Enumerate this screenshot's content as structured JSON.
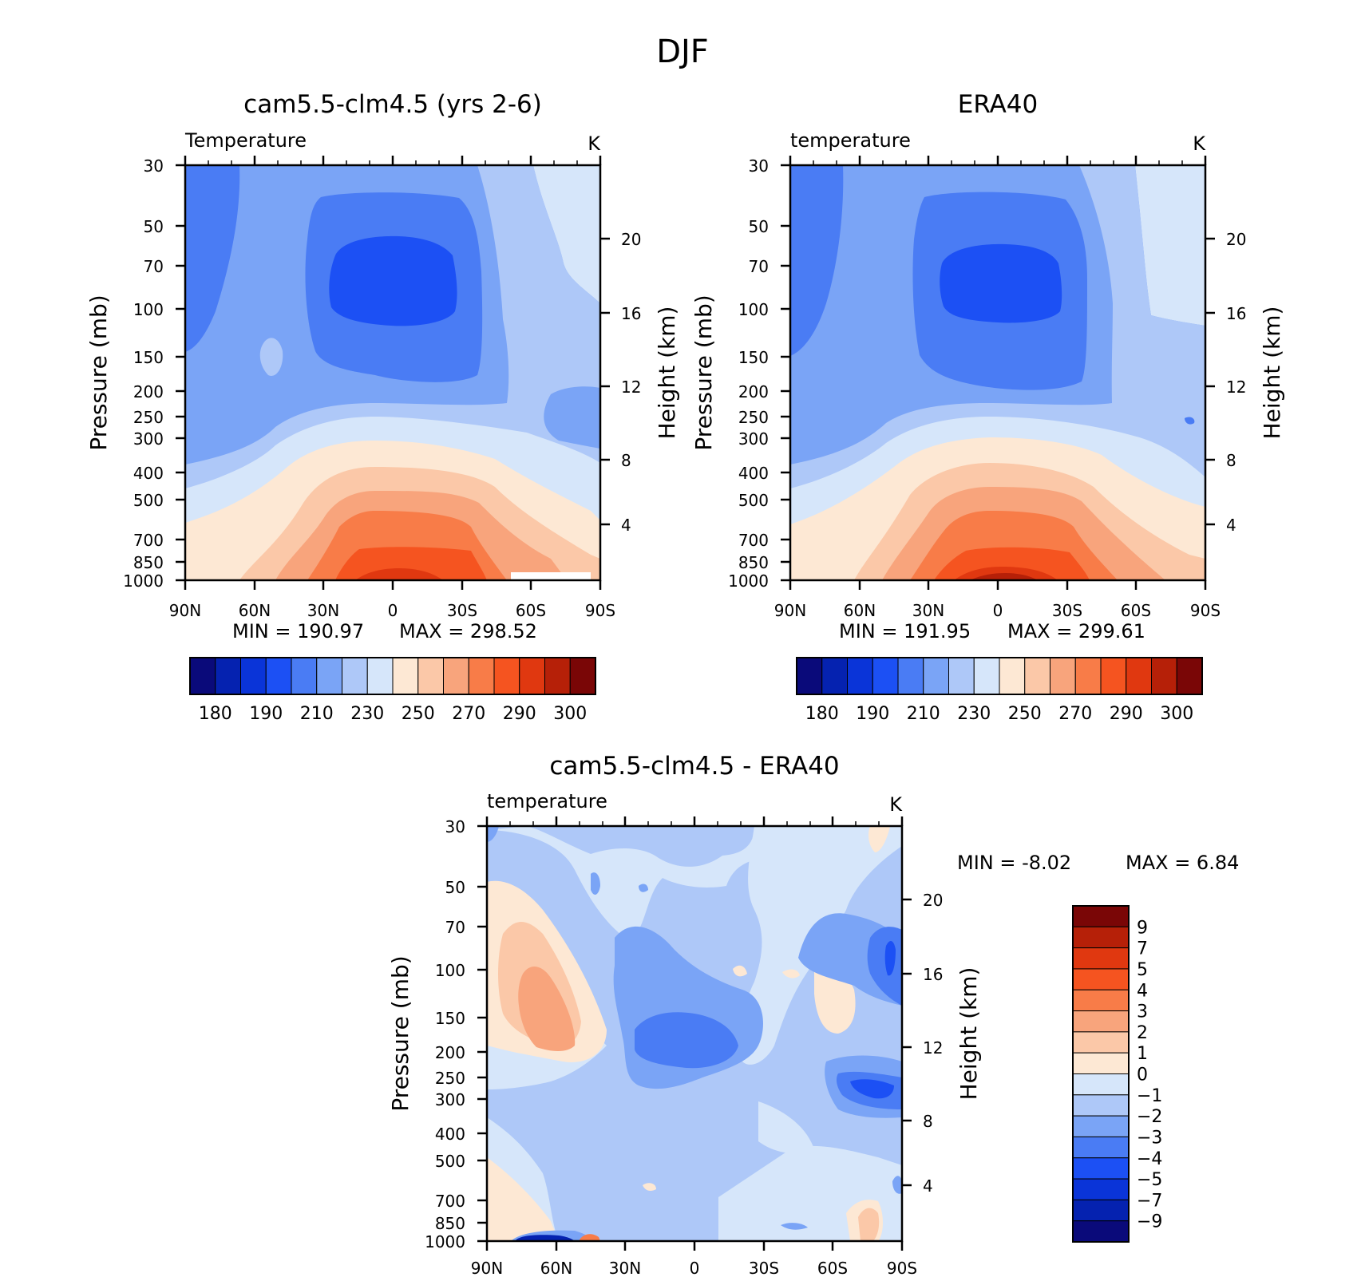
{
  "figure_title": "DJF",
  "chart_data": [
    {
      "type": "heatmap",
      "title": "cam5.5-clm4.5 (yrs 2-6)",
      "left_label": "Temperature",
      "units": "K",
      "ylabel": "Pressure (mb)",
      "y2label": "Height (km)",
      "xticklabels": [
        "90N",
        "60N",
        "30N",
        "0",
        "30S",
        "60S",
        "90S"
      ],
      "yticklabels": [
        "30",
        "50",
        "70",
        "100",
        "150",
        "200",
        "250",
        "300",
        "400",
        "500",
        "700",
        "850",
        "1000"
      ],
      "y2ticklabels": [
        "20",
        "16",
        "12",
        "8",
        "4"
      ],
      "min_text": "MIN = 190.97",
      "max_text": "MAX = 298.52",
      "colorbar_labels": [
        "180",
        "190",
        "210",
        "230",
        "250",
        "270",
        "290",
        "300"
      ],
      "colorbar_colors": [
        "#0a0a7a",
        "#0522b0",
        "#0a34d8",
        "#1c50f4",
        "#4a7cf4",
        "#7aa4f6",
        "#aec8f8",
        "#d6e6fa",
        "#fde8d4",
        "#fbc8a8",
        "#f8a47c",
        "#f87c48",
        "#f55420",
        "#e03810",
        "#b62008",
        "#7a0606"
      ],
      "min": 190.97,
      "max": 298.52
    },
    {
      "type": "heatmap",
      "title": "ERA40",
      "left_label": "temperature",
      "units": "K",
      "ylabel": "Pressure (mb)",
      "y2label": "Height (km)",
      "xticklabels": [
        "90N",
        "60N",
        "30N",
        "0",
        "30S",
        "60S",
        "90S"
      ],
      "yticklabels": [
        "30",
        "50",
        "70",
        "100",
        "150",
        "200",
        "250",
        "300",
        "400",
        "500",
        "700",
        "850",
        "1000"
      ],
      "y2ticklabels": [
        "20",
        "16",
        "12",
        "8",
        "4"
      ],
      "min_text": "MIN = 191.95",
      "max_text": "MAX = 299.61",
      "colorbar_labels": [
        "180",
        "190",
        "210",
        "230",
        "250",
        "270",
        "290",
        "300"
      ],
      "colorbar_colors": [
        "#0a0a7a",
        "#0522b0",
        "#0a34d8",
        "#1c50f4",
        "#4a7cf4",
        "#7aa4f6",
        "#aec8f8",
        "#d6e6fa",
        "#fde8d4",
        "#fbc8a8",
        "#f8a47c",
        "#f87c48",
        "#f55420",
        "#e03810",
        "#b62008",
        "#7a0606"
      ],
      "min": 191.95,
      "max": 299.61
    },
    {
      "type": "heatmap",
      "title": "cam5.5-clm4.5 - ERA40",
      "left_label": "temperature",
      "units": "K",
      "ylabel": "Pressure (mb)",
      "y2label": "Height (km)",
      "xticklabels": [
        "90N",
        "60N",
        "30N",
        "0",
        "30S",
        "60S",
        "90S"
      ],
      "yticklabels": [
        "30",
        "50",
        "70",
        "100",
        "150",
        "200",
        "250",
        "300",
        "400",
        "500",
        "700",
        "850",
        "1000"
      ],
      "y2ticklabels": [
        "20",
        "16",
        "12",
        "8",
        "4"
      ],
      "min_text": "MIN = -8.02",
      "max_text": "MAX = 6.84",
      "colorbar_labels": [
        "9",
        "7",
        "5",
        "4",
        "3",
        "2",
        "1",
        "0",
        "−1",
        "−2",
        "−3",
        "−4",
        "−5",
        "−7",
        "−9"
      ],
      "colorbar_colors": [
        "#7a0606",
        "#b62008",
        "#e03810",
        "#f55420",
        "#f87c48",
        "#f8a47c",
        "#fbc8a8",
        "#fde8d4",
        "#d6e6fa",
        "#aec8f8",
        "#7aa4f6",
        "#4a7cf4",
        "#1c50f4",
        "#0a34d8",
        "#0522b0",
        "#0a0a7a"
      ],
      "min": -8.02,
      "max": 6.84
    }
  ]
}
